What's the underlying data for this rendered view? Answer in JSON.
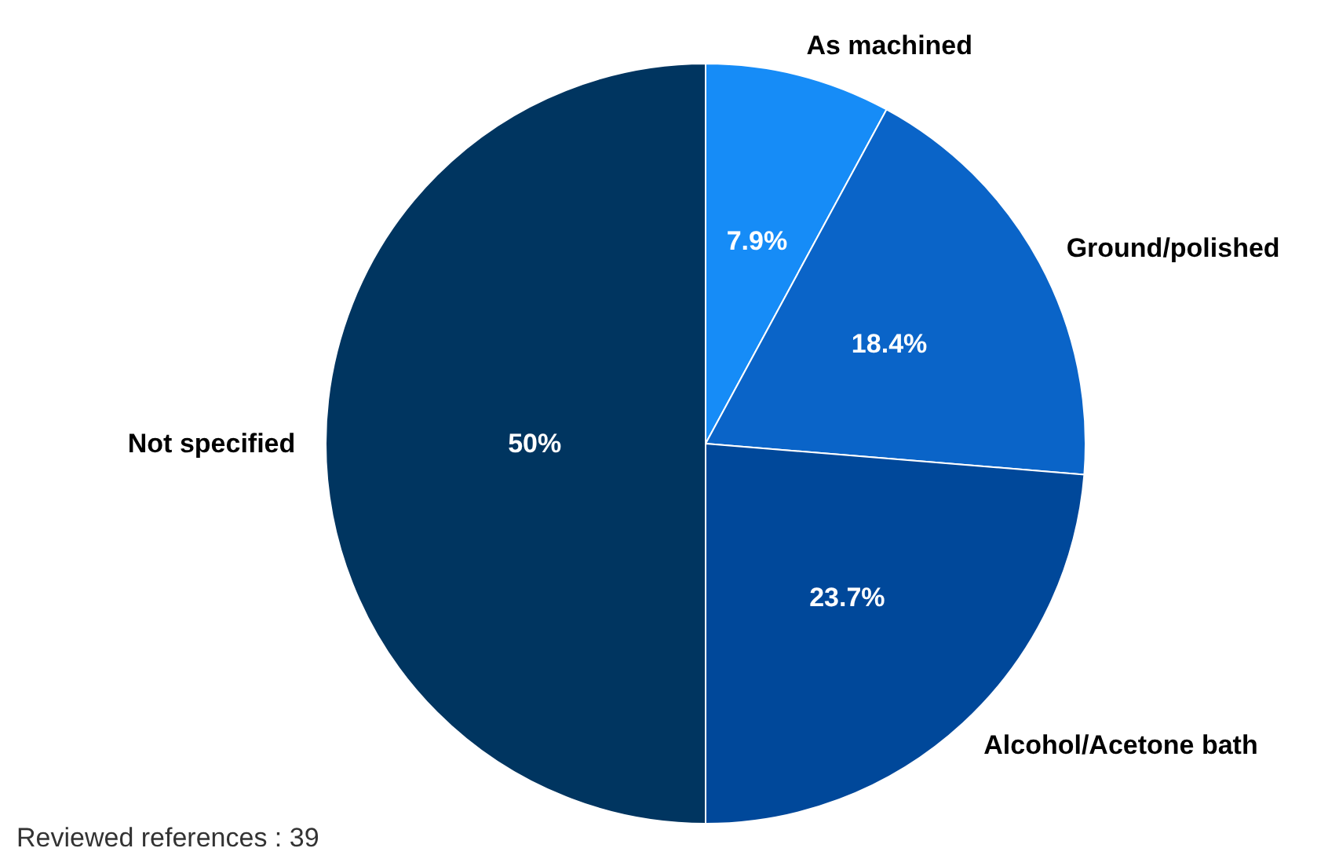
{
  "chart_data": {
    "type": "pie",
    "categories": [
      "As machined",
      "Ground/polished",
      "Alcohol/Acetone bath",
      "Not specified"
    ],
    "values": [
      7.9,
      18.4,
      23.7,
      50
    ],
    "colors": [
      "#168cf7",
      "#0a64c8",
      "#00489a",
      "#003560"
    ],
    "value_labels": [
      "7.9%",
      "18.4%",
      "23.7%",
      "50%"
    ],
    "annotations": [
      "Reviewed references : 39"
    ]
  }
}
